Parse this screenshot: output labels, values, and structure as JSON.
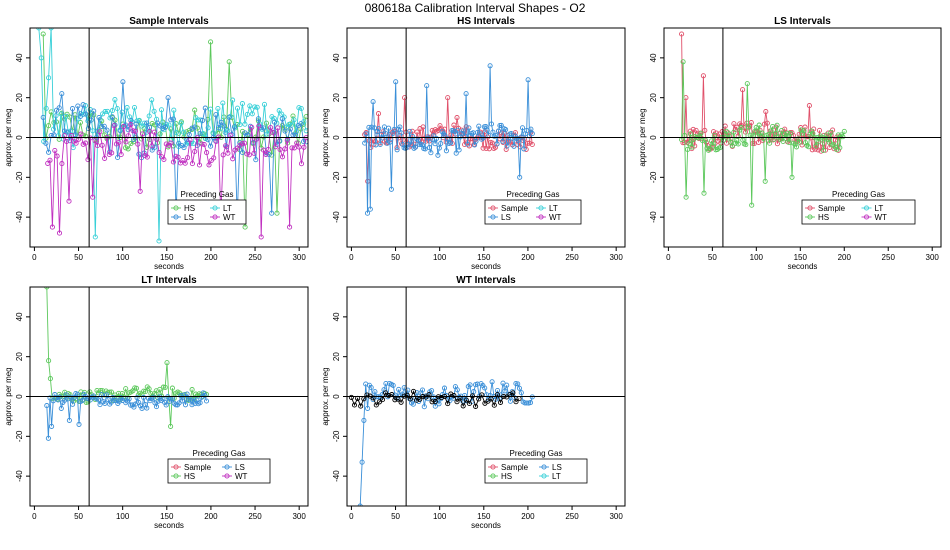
{
  "title": "080618a   Calibration Interval Shapes - O2",
  "colors": {
    "Sample": "#e0506a",
    "HS": "#5cc85c",
    "LS": "#3a8fd8",
    "LT": "#38d0d8",
    "WT": "#c030c0",
    "black": "#000000"
  },
  "chart_data": [
    {
      "type": "scatter",
      "title": "Sample Intervals",
      "xlabel": "seconds",
      "ylabel": "approx. per meg",
      "xlim": [
        -5,
        310
      ],
      "ylim": [
        -55,
        55
      ],
      "xticks": [
        0,
        50,
        100,
        150,
        200,
        250,
        300
      ],
      "yticks": [
        -40,
        -20,
        0,
        20,
        40
      ],
      "vline": 62,
      "hline": 0,
      "legend_title": "Preceding Gas",
      "legend": [
        "HS",
        "LT",
        "LS",
        "WT"
      ],
      "series": [
        {
          "name": "HS",
          "start": 10,
          "end": 308,
          "n": 100,
          "amp": 9,
          "offset": 3,
          "spikes": [
            [
              10,
              52
            ],
            [
              200,
              48
            ],
            [
              222,
              38
            ],
            [
              240,
              -45
            ],
            [
              275,
              -38
            ]
          ]
        },
        {
          "name": "LT",
          "start": 5,
          "end": 308,
          "n": 110,
          "amp": 10,
          "offset": 8,
          "spikes": [
            [
              5,
              55
            ],
            [
              8,
              40
            ],
            [
              15,
              30
            ],
            [
              20,
              55
            ],
            [
              70,
              -50
            ],
            [
              140,
              -52
            ]
          ]
        },
        {
          "name": "LS",
          "start": 10,
          "end": 308,
          "n": 100,
          "amp": 11,
          "offset": 2,
          "spikes": [
            [
              30,
              22
            ],
            [
              100,
              28
            ],
            [
              150,
              20
            ],
            [
              160,
              -38
            ],
            [
              230,
              -40
            ],
            [
              270,
              -38
            ]
          ]
        },
        {
          "name": "WT",
          "start": 15,
          "end": 308,
          "n": 110,
          "amp": 8,
          "offset": -4,
          "spikes": [
            [
              20,
              -45
            ],
            [
              28,
              -48
            ],
            [
              40,
              -32
            ],
            [
              65,
              -30
            ],
            [
              120,
              -27
            ],
            [
              210,
              -40
            ],
            [
              258,
              -50
            ],
            [
              290,
              -45
            ]
          ]
        }
      ]
    },
    {
      "type": "scatter",
      "title": "HS Intervals",
      "xlabel": "seconds",
      "ylabel": "approx. per meg",
      "xlim": [
        -5,
        310
      ],
      "ylim": [
        -55,
        55
      ],
      "xticks": [
        0,
        50,
        100,
        150,
        200,
        250,
        300
      ],
      "yticks": [
        -40,
        -20,
        0,
        20,
        40
      ],
      "vline": 62,
      "hline": 0,
      "legend_title": "Preceding Gas",
      "legend": [
        "Sample",
        "LT",
        "LS",
        "WT"
      ],
      "series": [
        {
          "name": "Sample",
          "start": 15,
          "end": 205,
          "n": 110,
          "amp": 5,
          "offset": 0,
          "spikes": [
            [
              18,
              -22
            ],
            [
              30,
              12
            ],
            [
              60,
              20
            ],
            [
              110,
              20
            ],
            [
              120,
              10
            ]
          ]
        },
        {
          "name": "LS",
          "start": 15,
          "end": 205,
          "n": 120,
          "amp": 6,
          "offset": -1,
          "spikes": [
            [
              18,
              -38
            ],
            [
              22,
              -36
            ],
            [
              25,
              18
            ],
            [
              45,
              -26
            ],
            [
              50,
              28
            ],
            [
              85,
              26
            ],
            [
              130,
              22
            ],
            [
              157,
              36
            ],
            [
              190,
              -20
            ],
            [
              200,
              29
            ]
          ]
        }
      ]
    },
    {
      "type": "scatter",
      "title": "LS Intervals",
      "xlabel": "seconds",
      "ylabel": "approx. per meg",
      "xlim": [
        -5,
        310
      ],
      "ylim": [
        -55,
        55
      ],
      "xticks": [
        0,
        50,
        100,
        150,
        200,
        250,
        300
      ],
      "yticks": [
        -40,
        -20,
        0,
        20,
        40
      ],
      "vline": 62,
      "hline": 0,
      "legend_title": "Preceding Gas",
      "legend": [
        "Sample",
        "LT",
        "HS",
        "WT"
      ],
      "series": [
        {
          "name": "Sample",
          "start": 15,
          "end": 195,
          "n": 110,
          "amp": 6,
          "offset": 1,
          "spikes": [
            [
              15,
              52
            ],
            [
              20,
              20
            ],
            [
              40,
              31
            ],
            [
              85,
              24
            ],
            [
              110,
              13
            ],
            [
              160,
              16
            ]
          ]
        },
        {
          "name": "HS",
          "start": 15,
          "end": 200,
          "n": 110,
          "amp": 5,
          "offset": 0,
          "spikes": [
            [
              17,
              38
            ],
            [
              20,
              -30
            ],
            [
              40,
              -28
            ],
            [
              90,
              27
            ],
            [
              95,
              -34
            ],
            [
              110,
              -22
            ],
            [
              140,
              -20
            ]
          ]
        }
      ]
    },
    {
      "type": "scatter",
      "title": "LT Intervals",
      "xlabel": "seconds",
      "ylabel": "approx. per meg",
      "xlim": [
        -5,
        310
      ],
      "ylim": [
        -55,
        55
      ],
      "xticks": [
        0,
        50,
        100,
        150,
        200,
        250,
        300
      ],
      "yticks": [
        -40,
        -20,
        0,
        20,
        40
      ],
      "vline": 62,
      "hline": 0,
      "legend_title": "Preceding Gas",
      "legend": [
        "Sample",
        "LS",
        "HS",
        "WT"
      ],
      "series": [
        {
          "name": "HS",
          "start": 14,
          "end": 195,
          "n": 90,
          "amp": 3,
          "offset": 1,
          "spikes": [
            [
              14,
              55
            ],
            [
              16,
              18
            ],
            [
              18,
              9
            ],
            [
              150,
              17
            ],
            [
              155,
              -15
            ]
          ]
        },
        {
          "name": "LS",
          "start": 14,
          "end": 195,
          "n": 100,
          "amp": 3,
          "offset": -2,
          "spikes": [
            [
              15,
              -21
            ],
            [
              20,
              -15
            ],
            [
              30,
              -6
            ],
            [
              40,
              -12
            ],
            [
              50,
              -14
            ]
          ]
        }
      ]
    },
    {
      "type": "scatter",
      "title": "WT Intervals",
      "xlabel": "seconds",
      "ylabel": "approx. per meg",
      "xlim": [
        -5,
        310
      ],
      "ylim": [
        -55,
        55
      ],
      "xticks": [
        0,
        50,
        100,
        150,
        200,
        250,
        300
      ],
      "yticks": [
        -40,
        -20,
        0,
        20,
        40
      ],
      "vline": 62,
      "hline": 0,
      "legend_title": "Preceding Gas",
      "legend": [
        "Sample",
        "LS",
        "HS",
        "LT"
      ],
      "series": [
        {
          "name": "LS",
          "start": 10,
          "end": 205,
          "n": 95,
          "amp": 5,
          "offset": 1,
          "spikes": [
            [
              10,
              -55
            ],
            [
              12,
              -33
            ],
            [
              15,
              -12
            ],
            [
              18,
              -6
            ]
          ]
        },
        {
          "name": "black",
          "start": 0,
          "end": 190,
          "n": 55,
          "amp": 3,
          "offset": -1,
          "spikes": []
        }
      ]
    }
  ]
}
